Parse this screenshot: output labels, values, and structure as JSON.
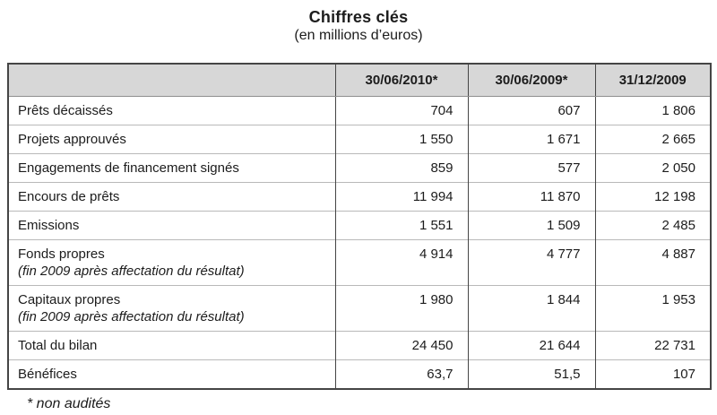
{
  "title": "Chiffres clés",
  "subtitle": "(en millions d’euros)",
  "footnote": "* non audités",
  "colors": {
    "header_bg": "#d7d7d7",
    "border_dark": "#454545",
    "border_light": "#b9b9b9"
  },
  "table": {
    "columns": [
      "",
      "30/06/2010*",
      "30/06/2009*",
      "31/12/2009"
    ],
    "rows": [
      {
        "label": "Prêts décaissés",
        "values": [
          "704",
          "607",
          "1 806"
        ]
      },
      {
        "label": "Projets approuvés",
        "values": [
          "1 550",
          "1 671",
          "2 665"
        ]
      },
      {
        "label": "Engagements de financement signés",
        "values": [
          "859",
          "577",
          "2 050"
        ]
      },
      {
        "label": "Encours de prêts",
        "values": [
          "11 994",
          "11 870",
          "12 198"
        ]
      },
      {
        "label": "Emissions",
        "values": [
          "1 551",
          "1 509",
          "2 485"
        ]
      },
      {
        "label": "Fonds propres",
        "note": "(fin 2009 après affectation du résultat)",
        "values": [
          "4 914",
          "4 777",
          "4 887"
        ]
      },
      {
        "label": "Capitaux propres",
        "note": "(fin 2009 après affectation du résultat)",
        "values": [
          "1 980",
          "1 844",
          "1 953"
        ]
      },
      {
        "label": "Total du bilan",
        "values": [
          "24 450",
          "21 644",
          "22 731"
        ]
      },
      {
        "label": "Bénéfices",
        "values": [
          "63,7",
          "51,5",
          "107"
        ]
      }
    ]
  }
}
